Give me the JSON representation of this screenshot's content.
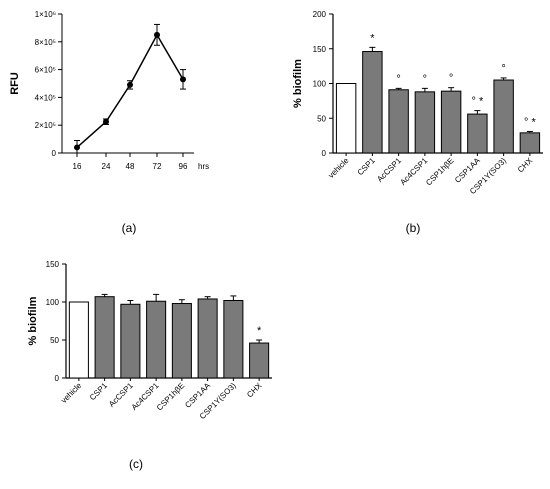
{
  "chart_data": [
    {
      "panel_label": "(a)",
      "type": "line",
      "x_ticks": [
        "16",
        "24",
        "48",
        "72",
        "96"
      ],
      "x_unit": "hrs",
      "ylabel": "RFU",
      "y_ticks": [
        "0",
        "2×10⁵",
        "4×10⁵",
        "6×10⁵",
        "8×10⁵",
        "1×10⁶"
      ],
      "ylim": [
        0,
        1000000
      ],
      "values": [
        40000,
        225000,
        490000,
        850000,
        530000
      ],
      "errors": [
        50000,
        20000,
        30000,
        75000,
        70000
      ]
    },
    {
      "panel_label": "(b)",
      "type": "bar",
      "ylabel": "% biofilm",
      "y_ticks": [
        "0",
        "50",
        "100",
        "150",
        "200"
      ],
      "ylim": [
        0,
        200
      ],
      "categories": [
        "vehicle",
        "CSP1",
        "AcCSP1",
        "Ac4CSP1",
        "CSP1hβE",
        "CSP1AA",
        "CSP1Y(SO3)",
        "CHX"
      ],
      "values": [
        100,
        146,
        91,
        88,
        89,
        56,
        105,
        29
      ],
      "errors": [
        0,
        6,
        2,
        5,
        5,
        5,
        3,
        2
      ],
      "fill_colors": [
        "#ffffff",
        "#7a7a7a",
        "#7a7a7a",
        "#7a7a7a",
        "#7a7a7a",
        "#7a7a7a",
        "#7a7a7a",
        "#7a7a7a"
      ],
      "annotations": [
        "",
        "*",
        "°",
        "°",
        "°",
        "° *",
        "°",
        "° *"
      ]
    },
    {
      "panel_label": "(c)",
      "type": "bar",
      "ylabel": "% biofilm",
      "y_ticks": [
        "0",
        "50",
        "100",
        "150"
      ],
      "ylim": [
        0,
        150
      ],
      "categories": [
        "vehicle",
        "CSP1",
        "AcCSP1",
        "Ac4CSP1",
        "CSP1hβE",
        "CSP1AA",
        "CSP1Y(SO3)",
        "CHX"
      ],
      "values": [
        100,
        107,
        97,
        101,
        98,
        104,
        102,
        46
      ],
      "errors": [
        0,
        3,
        5,
        9,
        5,
        3,
        6,
        4
      ],
      "fill_colors": [
        "#ffffff",
        "#7a7a7a",
        "#7a7a7a",
        "#7a7a7a",
        "#7a7a7a",
        "#7a7a7a",
        "#7a7a7a",
        "#7a7a7a"
      ],
      "annotations": [
        "",
        "",
        "",
        "",
        "",
        "",
        "",
        "*"
      ]
    }
  ]
}
